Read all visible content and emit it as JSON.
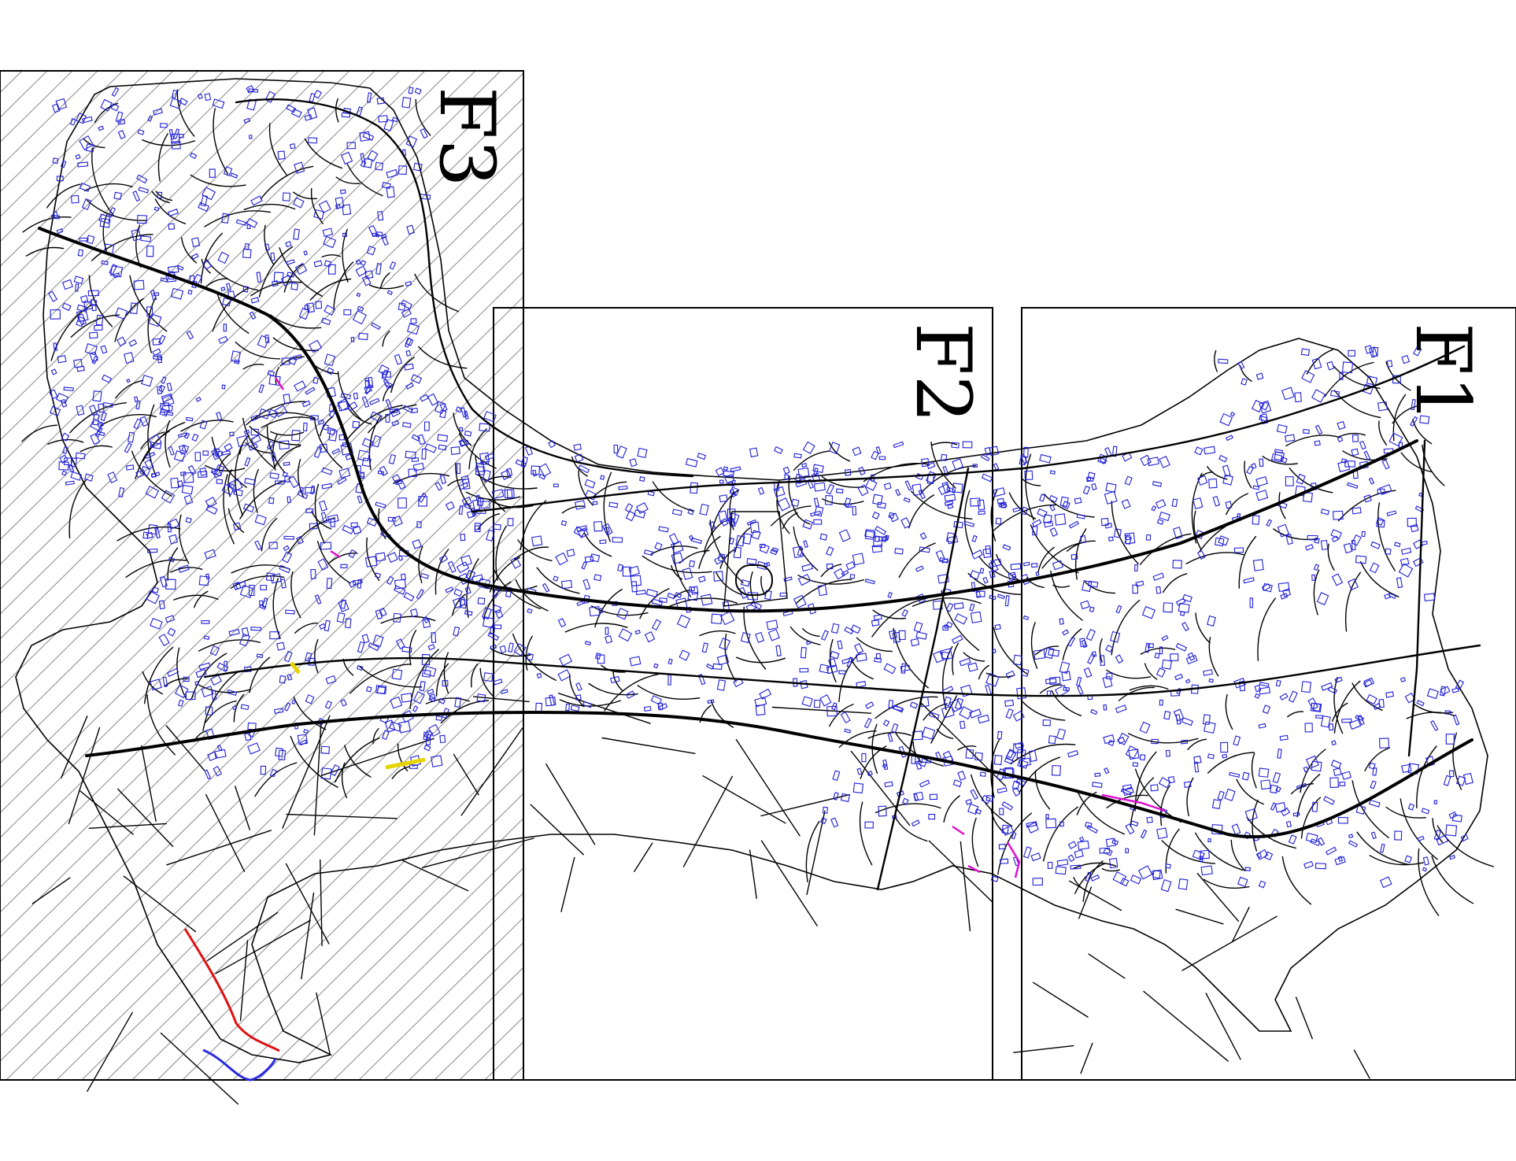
{
  "sheets": [
    {
      "id": "F3",
      "label": "F3"
    },
    {
      "id": "F2",
      "label": "F2"
    },
    {
      "id": "F1",
      "label": "F1"
    }
  ],
  "colors": {
    "frame": "#000000",
    "roads": "#000000",
    "buildings": "#1f1fd6",
    "hatch": "#888888",
    "red_feature": "#e01010",
    "magenta_feature": "#e010d0",
    "yellow_feature": "#e6d400",
    "blue_feature": "#2a2ae0"
  }
}
